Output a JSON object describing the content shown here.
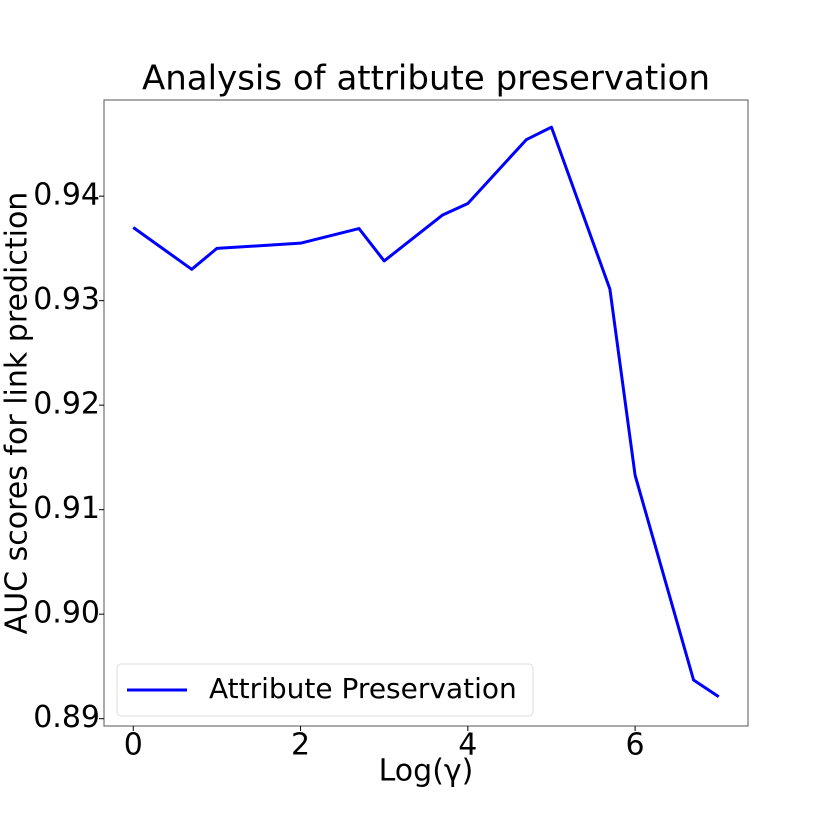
{
  "chart_data": {
    "type": "line",
    "title": "Analysis of attribute preservation",
    "x_label": "Log(γ)",
    "y_label": "AUC scores for link prediction",
    "x": [
      0,
      0.699,
      1,
      2,
      2.699,
      3,
      3.699,
      4,
      4.699,
      5,
      5.699,
      6,
      6.699,
      7
    ],
    "series": [
      {
        "name": "Attribute Preservation",
        "color": "#0000ff",
        "values": [
          0.937,
          0.933,
          0.935,
          0.9355,
          0.9369,
          0.9338,
          0.9382,
          0.9393,
          0.9454,
          0.9466,
          0.9311,
          0.9133,
          0.8937,
          0.8921
        ]
      }
    ],
    "xlim": [
      -0.35,
      7.35
    ],
    "xticks": [
      0,
      2,
      4,
      6
    ],
    "ylim": [
      0.8893,
      0.9492
    ],
    "yticks": [
      0.89,
      {
        "value": 0.9,
        "label": "0.90"
      },
      0.91,
      0.92,
      0.93,
      0.94
    ],
    "grid": false,
    "legend": "lower left"
  }
}
